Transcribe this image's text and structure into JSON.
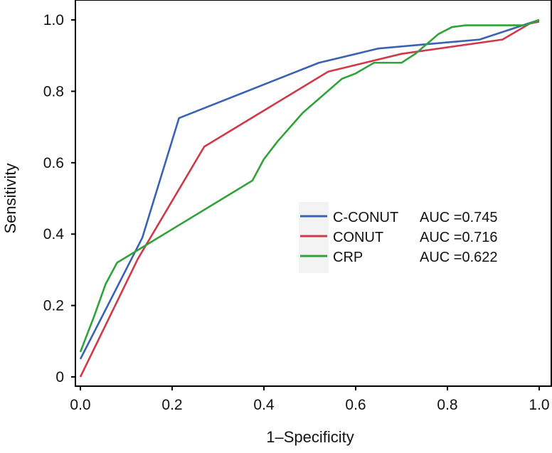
{
  "chart_data": {
    "type": "line",
    "title": "",
    "xlabel": "1–Specificity",
    "ylabel": "Sensitivity",
    "xlim": [
      0,
      1
    ],
    "ylim": [
      0,
      1
    ],
    "xticks": [
      "0.0",
      "0.2",
      "0.4",
      "0.6",
      "0.8",
      "1.0"
    ],
    "yticks": [
      "0",
      "0.2",
      "0.4",
      "0.6",
      "0.8",
      "1.0"
    ],
    "xtick_values": [
      0,
      0.2,
      0.4,
      0.6,
      0.8,
      1.0
    ],
    "ytick_values": [
      0,
      0.2,
      0.4,
      0.6,
      0.8,
      1.0
    ],
    "grid": false,
    "legend_position": "center-right",
    "series": [
      {
        "name": "C-CONUT",
        "auc_label": "AUC =0.745",
        "color": "#3a62b4",
        "x": [
          0,
          0.135,
          0.215,
          0.52,
          0.65,
          0.87,
          1
        ],
        "y": [
          0.05,
          0.39,
          0.725,
          0.88,
          0.92,
          0.945,
          1
        ]
      },
      {
        "name": "CONUT",
        "auc_label": "AUC =0.716",
        "color": "#cf3a4a",
        "x": [
          0,
          0.125,
          0.27,
          0.54,
          0.7,
          0.92,
          0.98,
          1
        ],
        "y": [
          0,
          0.33,
          0.645,
          0.855,
          0.905,
          0.945,
          0.99,
          0.995
        ]
      },
      {
        "name": "CRP",
        "auc_label": "AUC =0.622",
        "color": "#2fa23a",
        "x": [
          0,
          0.03,
          0.055,
          0.08,
          0.375,
          0.4,
          0.43,
          0.485,
          0.57,
          0.6,
          0.64,
          0.7,
          0.73,
          0.78,
          0.81,
          0.84,
          0.97,
          1
        ],
        "y": [
          0.07,
          0.17,
          0.26,
          0.32,
          0.55,
          0.61,
          0.66,
          0.74,
          0.835,
          0.85,
          0.88,
          0.88,
          0.905,
          0.96,
          0.98,
          0.985,
          0.985,
          1
        ]
      }
    ]
  }
}
